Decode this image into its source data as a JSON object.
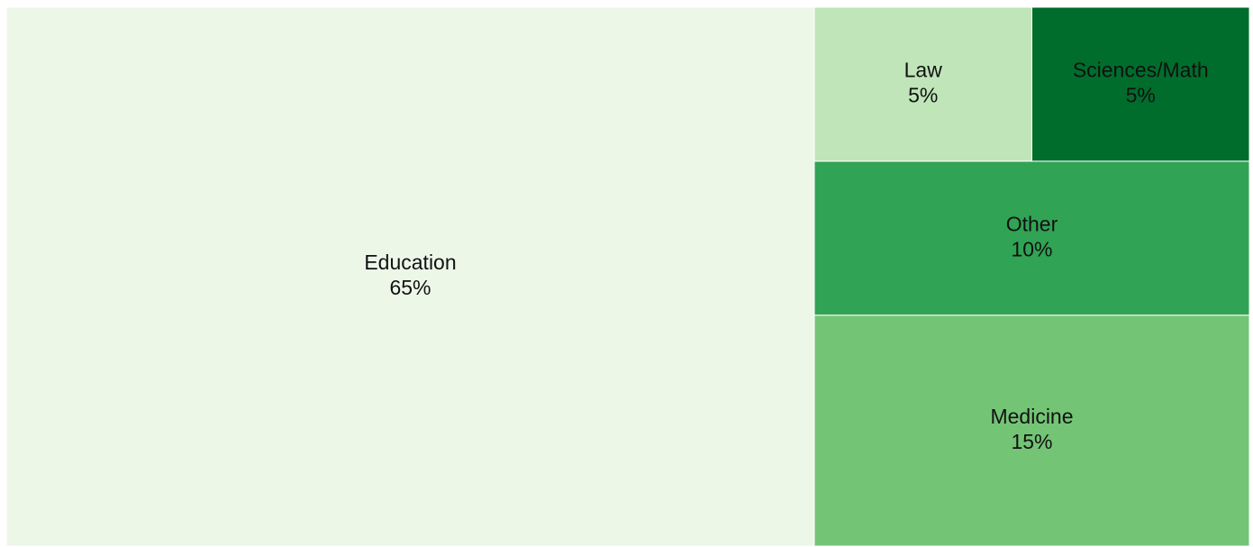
{
  "chart_data": {
    "type": "treemap",
    "categories": [
      "Education",
      "Medicine",
      "Other",
      "Law",
      "Sciences/Math"
    ],
    "values": [
      65,
      15,
      10,
      5,
      5
    ],
    "value_labels": [
      "65%",
      "15%",
      "10%",
      "5%",
      "5%"
    ],
    "colors": [
      "#edf7e8",
      "#74c476",
      "#31a354",
      "#bfe5b8",
      "#006d2c"
    ]
  }
}
